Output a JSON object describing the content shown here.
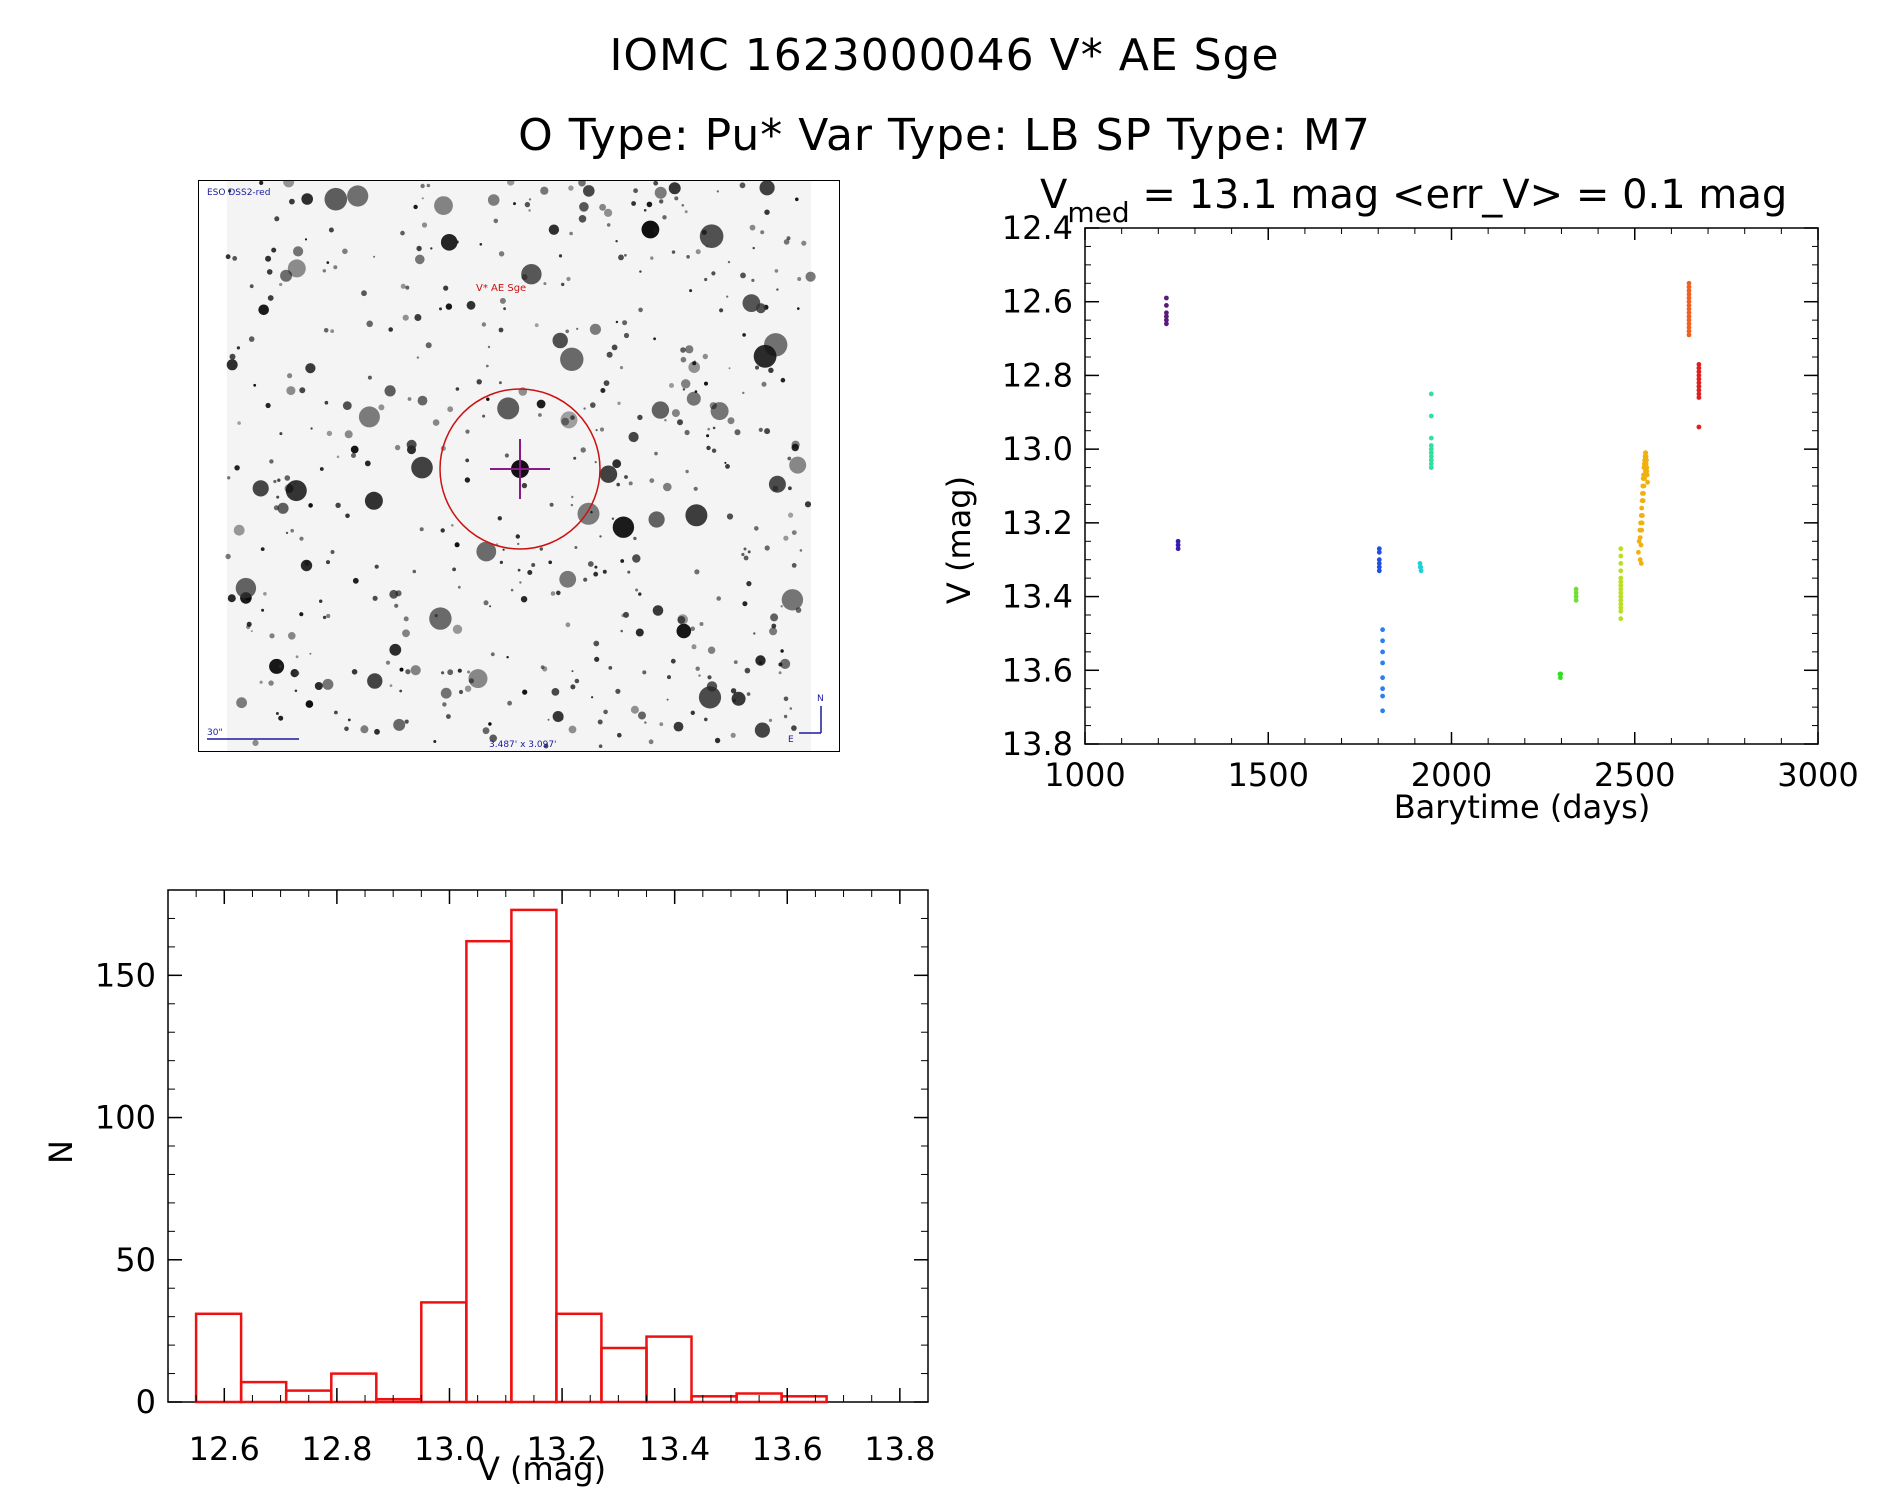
{
  "header": {
    "line1": "IOMC 1623000046   V* AE Sge",
    "line2": "O Type: Pu*  Var Type: LB  SP Type: M7"
  },
  "finder_chart": {
    "survey_label": "ESO DSS2-red",
    "target_label": "V* AE Sge",
    "scale_label": "30\"",
    "fov_label": "3.487' x 3.097'",
    "north_label": "N",
    "east_label": "E"
  },
  "colors": {
    "histogram": "#ee1111",
    "finder_marker": "#cc1111",
    "finder_cross": "#8a1a8a",
    "finder_text": "#1a1aa0"
  },
  "chart_data": [
    {
      "type": "scatter",
      "title_main": "V",
      "title_sub": "med",
      "title_rest": " = 13.1 mag <err_V> = 0.1 mag",
      "xlabel": "Barytime (days)",
      "ylabel": "V (mag)",
      "xlim": [
        1000,
        3000
      ],
      "ylim": [
        13.8,
        12.4
      ],
      "xticks": [
        1000,
        1500,
        2000,
        2500,
        3000
      ],
      "yticks": [
        12.4,
        12.6,
        12.8,
        13.0,
        13.2,
        13.4,
        13.6,
        13.8
      ],
      "series": [
        {
          "name": "seg1",
          "color": "#5a1a7a",
          "x": [
            1222,
            1222,
            1222,
            1222,
            1222,
            1222
          ],
          "y": [
            12.59,
            12.61,
            12.63,
            12.64,
            12.65,
            12.66
          ]
        },
        {
          "name": "seg2",
          "color": "#3a1ab0",
          "x": [
            1254,
            1254,
            1254
          ],
          "y": [
            13.25,
            13.26,
            13.27
          ]
        },
        {
          "name": "seg3",
          "color": "#2050e0",
          "x": [
            1803,
            1803,
            1803,
            1803,
            1803,
            1803
          ],
          "y": [
            13.27,
            13.28,
            13.3,
            13.31,
            13.32,
            13.33
          ]
        },
        {
          "name": "seg4",
          "color": "#2a80f0",
          "x": [
            1812,
            1812,
            1812,
            1812,
            1812,
            1812,
            1812,
            1812
          ],
          "y": [
            13.49,
            13.52,
            13.55,
            13.58,
            13.62,
            13.65,
            13.67,
            13.71
          ]
        },
        {
          "name": "seg5",
          "color": "#20d0d8",
          "x": [
            1914,
            1916,
            1917,
            1915
          ],
          "y": [
            13.31,
            13.32,
            13.33,
            13.32
          ]
        },
        {
          "name": "seg6",
          "color": "#30e0a0",
          "x": [
            1945,
            1945,
            1945,
            1945,
            1945,
            1945,
            1945,
            1945,
            1945,
            1945
          ],
          "y": [
            12.85,
            12.91,
            12.97,
            12.99,
            13.0,
            13.01,
            13.02,
            13.03,
            13.04,
            13.05
          ]
        },
        {
          "name": "seg7",
          "color": "#30e020",
          "x": [
            2296,
            2297,
            2298
          ],
          "y": [
            13.61,
            13.62,
            13.61
          ]
        },
        {
          "name": "seg8",
          "color": "#70e030",
          "x": [
            2340,
            2340,
            2340,
            2340
          ],
          "y": [
            13.38,
            13.39,
            13.4,
            13.41
          ]
        },
        {
          "name": "seg9",
          "color": "#b8e020",
          "x": [
            2462,
            2462,
            2462,
            2462,
            2462,
            2462,
            2462,
            2462,
            2462,
            2462,
            2462,
            2462,
            2462,
            2462,
            2462
          ],
          "y": [
            13.27,
            13.29,
            13.31,
            13.33,
            13.35,
            13.36,
            13.37,
            13.38,
            13.39,
            13.4,
            13.41,
            13.42,
            13.43,
            13.44,
            13.46
          ]
        },
        {
          "name": "seg10",
          "color": "#f0b010",
          "x": [
            2510,
            2512,
            2514,
            2515,
            2516,
            2518,
            2518,
            2519,
            2520,
            2521,
            2522,
            2523,
            2524,
            2525,
            2526,
            2527,
            2528,
            2529,
            2530,
            2531,
            2532,
            2533,
            2534,
            2535,
            2517,
            2519,
            2521,
            2523,
            2525,
            2527,
            2529,
            2531,
            2533,
            2515,
            2520,
            2524
          ],
          "y": [
            13.28,
            13.25,
            13.22,
            13.3,
            13.2,
            13.18,
            13.31,
            13.16,
            13.14,
            13.12,
            13.1,
            13.08,
            13.07,
            13.05,
            13.04,
            13.03,
            13.02,
            13.01,
            13.01,
            13.02,
            13.03,
            13.05,
            13.07,
            13.09,
            13.26,
            13.22,
            13.18,
            13.14,
            13.1,
            13.08,
            13.06,
            13.04,
            13.06,
            13.24,
            13.2,
            13.12
          ]
        },
        {
          "name": "seg11",
          "color": "#f06020",
          "x": [
            2648,
            2648,
            2648,
            2648,
            2648,
            2648,
            2648,
            2648,
            2648,
            2648,
            2648,
            2648,
            2648,
            2648,
            2648
          ],
          "y": [
            12.55,
            12.56,
            12.57,
            12.58,
            12.59,
            12.6,
            12.61,
            12.62,
            12.63,
            12.64,
            12.65,
            12.66,
            12.67,
            12.68,
            12.69
          ]
        },
        {
          "name": "seg12",
          "color": "#e02020",
          "x": [
            2675,
            2675,
            2675,
            2675,
            2675,
            2675,
            2675,
            2675,
            2675,
            2675,
            2675
          ],
          "y": [
            12.77,
            12.78,
            12.79,
            12.8,
            12.81,
            12.82,
            12.83,
            12.84,
            12.85,
            12.86,
            12.94
          ]
        }
      ]
    },
    {
      "type": "bar",
      "style": "histogram",
      "xlabel": "V (mag)",
      "ylabel": "N",
      "xlim": [
        12.5,
        13.85
      ],
      "ylim": [
        0,
        180
      ],
      "xticks": [
        12.6,
        12.8,
        13.0,
        13.2,
        13.4,
        13.6,
        13.8
      ],
      "xtick_labels": [
        "12.6",
        "12.8",
        "13.0",
        "13.2",
        "13.4",
        "13.6",
        "13.8"
      ],
      "yticks": [
        0,
        50,
        100,
        150
      ],
      "bin_width": 0.08,
      "bin_starts": [
        12.55,
        12.63,
        12.71,
        12.79,
        12.87,
        12.95,
        13.03,
        13.11,
        13.19,
        13.27,
        13.35,
        13.43,
        13.51,
        13.59,
        13.67
      ],
      "values": [
        31,
        7,
        4,
        10,
        1,
        35,
        162,
        173,
        31,
        19,
        23,
        2,
        3,
        2,
        0
      ]
    }
  ]
}
